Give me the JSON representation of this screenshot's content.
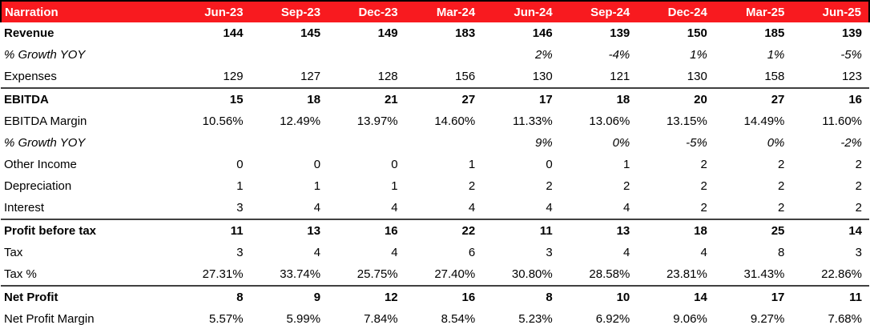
{
  "table": {
    "header": {
      "narration_label": "Narration",
      "periods": [
        "Jun-23",
        "Sep-23",
        "Dec-23",
        "Mar-24",
        "Jun-24",
        "Sep-24",
        "Dec-24",
        "Mar-25",
        "Jun-25"
      ]
    },
    "rows": [
      {
        "label": "Revenue",
        "emphasis": "bold",
        "separator_above": false,
        "values": [
          "144",
          "145",
          "149",
          "183",
          "146",
          "139",
          "150",
          "185",
          "139"
        ]
      },
      {
        "label": "% Growth YOY",
        "emphasis": "italic",
        "separator_above": false,
        "values": [
          "",
          "",
          "",
          "",
          "2%",
          "-4%",
          "1%",
          "1%",
          "-5%"
        ]
      },
      {
        "label": "Expenses",
        "emphasis": "normal",
        "separator_above": false,
        "values": [
          "129",
          "127",
          "128",
          "156",
          "130",
          "121",
          "130",
          "158",
          "123"
        ]
      },
      {
        "label": "EBITDA",
        "emphasis": "bold",
        "separator_above": true,
        "values": [
          "15",
          "18",
          "21",
          "27",
          "17",
          "18",
          "20",
          "27",
          "16"
        ]
      },
      {
        "label": "EBITDA Margin",
        "emphasis": "normal",
        "separator_above": false,
        "values": [
          "10.56%",
          "12.49%",
          "13.97%",
          "14.60%",
          "11.33%",
          "13.06%",
          "13.15%",
          "14.49%",
          "11.60%"
        ]
      },
      {
        "label": "% Growth YOY",
        "emphasis": "italic",
        "separator_above": false,
        "values": [
          "",
          "",
          "",
          "",
          "9%",
          "0%",
          "-5%",
          "0%",
          "-2%"
        ]
      },
      {
        "label": "Other Income",
        "emphasis": "normal",
        "separator_above": false,
        "values": [
          "0",
          "0",
          "0",
          "1",
          "0",
          "1",
          "2",
          "2",
          "2"
        ]
      },
      {
        "label": "Depreciation",
        "emphasis": "normal",
        "separator_above": false,
        "values": [
          "1",
          "1",
          "1",
          "2",
          "2",
          "2",
          "2",
          "2",
          "2"
        ]
      },
      {
        "label": "Interest",
        "emphasis": "normal",
        "separator_above": false,
        "values": [
          "3",
          "4",
          "4",
          "4",
          "4",
          "4",
          "2",
          "2",
          "2"
        ]
      },
      {
        "label": "Profit before tax",
        "emphasis": "bold",
        "separator_above": true,
        "values": [
          "11",
          "13",
          "16",
          "22",
          "11",
          "13",
          "18",
          "25",
          "14"
        ]
      },
      {
        "label": "Tax",
        "emphasis": "normal",
        "separator_above": false,
        "values": [
          "3",
          "4",
          "4",
          "6",
          "3",
          "4",
          "4",
          "8",
          "3"
        ]
      },
      {
        "label": "Tax %",
        "emphasis": "normal",
        "separator_above": false,
        "values": [
          "27.31%",
          "33.74%",
          "25.75%",
          "27.40%",
          "30.80%",
          "28.58%",
          "23.81%",
          "31.43%",
          "22.86%"
        ]
      },
      {
        "label": "Net Profit",
        "emphasis": "bold",
        "separator_above": true,
        "values": [
          "8",
          "9",
          "12",
          "16",
          "8",
          "10",
          "14",
          "17",
          "11"
        ]
      },
      {
        "label": "Net Profit Margin",
        "emphasis": "normal",
        "separator_above": false,
        "values": [
          "5.57%",
          "5.99%",
          "7.84%",
          "8.54%",
          "5.23%",
          "6.92%",
          "9.06%",
          "9.27%",
          "7.68%"
        ]
      }
    ],
    "colors": {
      "header_bg": "#F81A1F",
      "header_text": "#FFFFFF",
      "header_border": "#000000",
      "separator_line": "#404040",
      "body_text": "#000000"
    }
  }
}
